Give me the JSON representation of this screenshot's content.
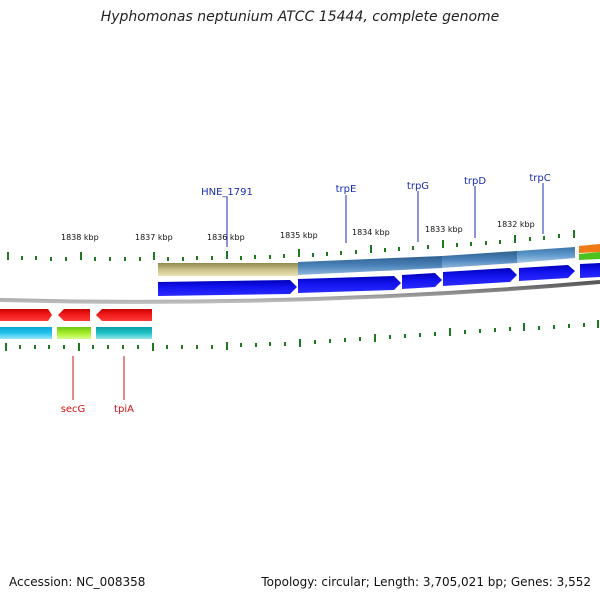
{
  "title": "Hyphomonas neptunium ATCC 15444, complete genome",
  "footer": {
    "accession": "Accession: NC_008358",
    "summary": "Topology: circular; Length: 3,705,021 bp; Genes: 3,552"
  },
  "kbp_labels": [
    "1838 kbp",
    "1837 kbp",
    "1836 kbp",
    "1835 kbp",
    "1834 kbp",
    "1833 kbp",
    "1832 kbp"
  ],
  "top_gene_labels": [
    "HNE_1791",
    "trpE",
    "trpG",
    "trpD",
    "trpC"
  ],
  "bottom_gene_labels": [
    "secG",
    "tpiA"
  ],
  "colors": {
    "strand_forward": "#1010e0",
    "strand_reverse": "#ee1111",
    "label_forward": "#1a2bb0",
    "label_reverse": "#d21010",
    "tick": "#1e7a1e",
    "backbone": "#777777"
  }
}
